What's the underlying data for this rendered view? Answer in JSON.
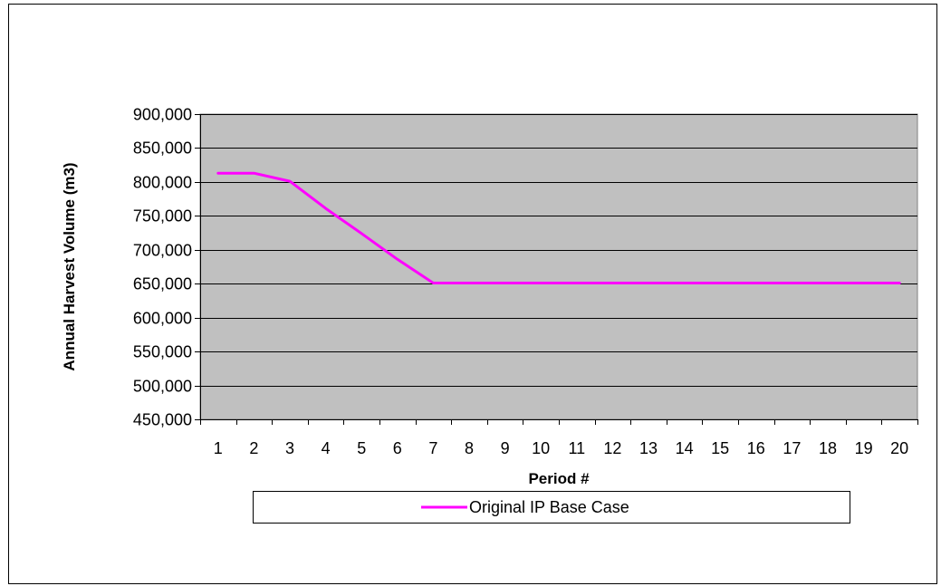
{
  "chart_data": {
    "type": "line",
    "title": "",
    "xlabel": "Period #",
    "ylabel": "Annual Harvest Volume (m3)",
    "categories": [
      "1",
      "2",
      "3",
      "4",
      "5",
      "6",
      "7",
      "8",
      "9",
      "10",
      "11",
      "12",
      "13",
      "14",
      "15",
      "16",
      "17",
      "18",
      "19",
      "20"
    ],
    "ylim": [
      450000,
      900000
    ],
    "ytick_step": 50000,
    "ytick_labels": [
      "450,000",
      "500,000",
      "550,000",
      "600,000",
      "650,000",
      "700,000",
      "750,000",
      "800,000",
      "850,000",
      "900,000"
    ],
    "grid": true,
    "plot_background": "#C0C0C0",
    "legend_position": "bottom",
    "series": [
      {
        "name": "Original IP Base Case",
        "color": "#FF00FF",
        "values": [
          813000,
          813000,
          801000,
          761000,
          724000,
          686000,
          651000,
          651000,
          651000,
          651000,
          651000,
          651000,
          651000,
          651000,
          651000,
          651000,
          651000,
          651000,
          651000,
          651000
        ]
      }
    ]
  }
}
